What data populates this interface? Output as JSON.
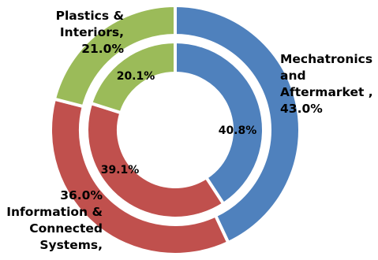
{
  "chart_data": {
    "type": "pie",
    "style": "nested-donut",
    "categories": [
      "Mechatronics and Aftermarket",
      "Information & Connected Systems",
      "Plastics & Interiors"
    ],
    "colors": [
      "#4F81BD",
      "#C0504D",
      "#9BBB59"
    ],
    "series": [
      {
        "ring": "outer",
        "values": [
          43.0,
          36.0,
          21.0
        ],
        "labels": [
          [
            "Mechatronics",
            "and",
            "Aftermarket ,",
            "43.0%"
          ],
          [
            "36.0%",
            "Information &",
            "Connected",
            "Systems,"
          ],
          [
            "Plastics &",
            "Interiors,",
            "21.0%"
          ]
        ]
      },
      {
        "ring": "inner",
        "values": [
          40.8,
          39.1,
          20.1
        ],
        "labels": [
          "40.8%",
          "39.1%",
          "20.1%"
        ]
      }
    ]
  }
}
